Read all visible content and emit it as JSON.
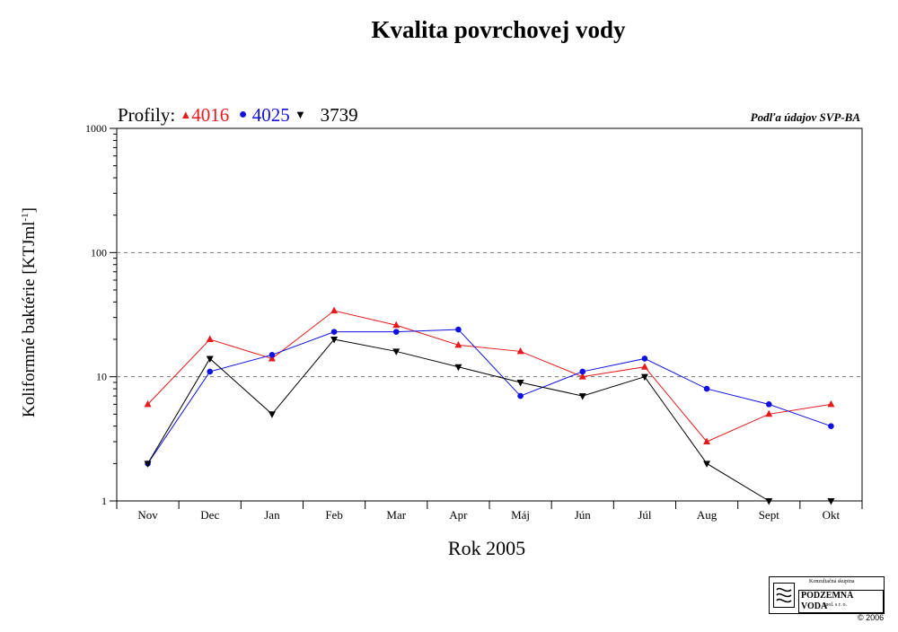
{
  "chart_data": {
    "type": "line",
    "title": "Kvalita povrchovej vody",
    "xlabel": "Rok 2005",
    "ylabel_main": "Koliformné baktérie [KTJml",
    "ylabel_sup": "-1",
    "ylabel_end": "]",
    "categories": [
      "Nov",
      "Dec",
      "Jan",
      "Feb",
      "Mar",
      "Apr",
      "Máj",
      "Jún",
      "Júl",
      "Aug",
      "Sept",
      "Okt"
    ],
    "yscale": "log",
    "ylim": [
      1,
      1000
    ],
    "yticks": [
      1,
      10,
      100,
      1000
    ],
    "ytick_labels": [
      "1",
      "10",
      "100",
      "1000"
    ],
    "grid": "dashed horizontal at 10 and 100",
    "legend_prefix": "Profily:",
    "legend_placement": "top-left",
    "series": [
      {
        "name": "4016",
        "color": "#e41a1c",
        "marker": "triangle-up",
        "x_index": [
          0,
          1,
          2,
          3,
          4,
          5,
          6,
          7,
          8,
          9,
          10,
          11
        ],
        "values": [
          6,
          20,
          14,
          34,
          26,
          18,
          16,
          10,
          12,
          3,
          5,
          6
        ]
      },
      {
        "name": "4025",
        "color": "#1010e0",
        "marker": "circle",
        "x_index": [
          0,
          1,
          2,
          3,
          4,
          5,
          6,
          7,
          8,
          9,
          10,
          11
        ],
        "values": [
          2,
          11,
          15,
          23,
          23,
          24,
          7,
          11,
          14,
          8,
          6,
          4
        ]
      },
      {
        "name": "3739",
        "color": "#000000",
        "marker": "triangle-down",
        "x_index": [
          0,
          1,
          2,
          3,
          4,
          5,
          6,
          7,
          8,
          9,
          10,
          11
        ],
        "values": [
          2,
          14,
          5,
          20,
          16,
          12,
          9,
          7,
          10,
          2,
          1,
          1
        ]
      }
    ]
  },
  "source_note": "Podľa údajov SVP-BA",
  "logo": {
    "top": "Konzultačná skupina",
    "name": "PODZEMNÁ VODA",
    "sub": "spol. s r. o.",
    "copyright": "© 2006"
  }
}
